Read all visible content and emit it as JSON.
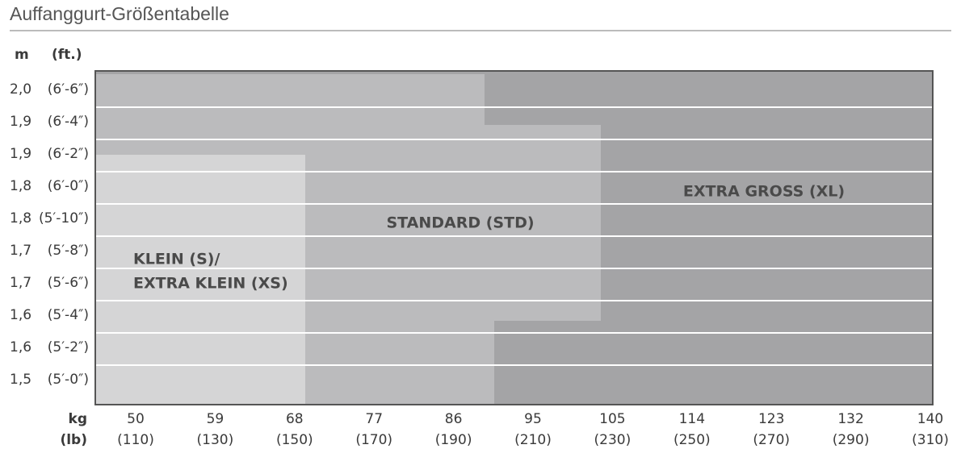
{
  "title": "Auffanggurt-Größentabelle",
  "headers": {
    "m": "m",
    "ft": "(ft.)"
  },
  "rows": [
    {
      "m": "2,0",
      "ft": "(6′-6″)"
    },
    {
      "m": "1,9",
      "ft": "(6′-4″)"
    },
    {
      "m": "1,9",
      "ft": "(6′-2″)"
    },
    {
      "m": "1,8",
      "ft": "(6′-0″)"
    },
    {
      "m": "1,8",
      "ft": "(5′-10″)"
    },
    {
      "m": "1,7",
      "ft": "(5′-8″)"
    },
    {
      "m": "1,7",
      "ft": "(5′-6″)"
    },
    {
      "m": "1,6",
      "ft": "(5′-4″)"
    },
    {
      "m": "1,6",
      "ft": "(5′-2″)"
    },
    {
      "m": "1,5",
      "ft": "(5′-0″)"
    }
  ],
  "kg_label": "kg",
  "lb_label": "(lb)",
  "columns": [
    {
      "kg": "50",
      "lb": "(110)"
    },
    {
      "kg": "59",
      "lb": "(130)"
    },
    {
      "kg": "68",
      "lb": "(150)"
    },
    {
      "kg": "77",
      "lb": "(170)"
    },
    {
      "kg": "86",
      "lb": "(190)"
    },
    {
      "kg": "95",
      "lb": "(210)"
    },
    {
      "kg": "105",
      "lb": "(230)"
    },
    {
      "kg": "114",
      "lb": "(250)"
    },
    {
      "kg": "123",
      "lb": "(270)"
    },
    {
      "kg": "132",
      "lb": "(290)"
    },
    {
      "kg": "140",
      "lb": "(310)"
    }
  ],
  "regions": {
    "xs": [
      "KLEIN (S)/",
      "EXTRA KLEIN (XS)"
    ],
    "std": "STANDARD (STD)",
    "xl": "EXTRA GROSS (XL)"
  }
}
